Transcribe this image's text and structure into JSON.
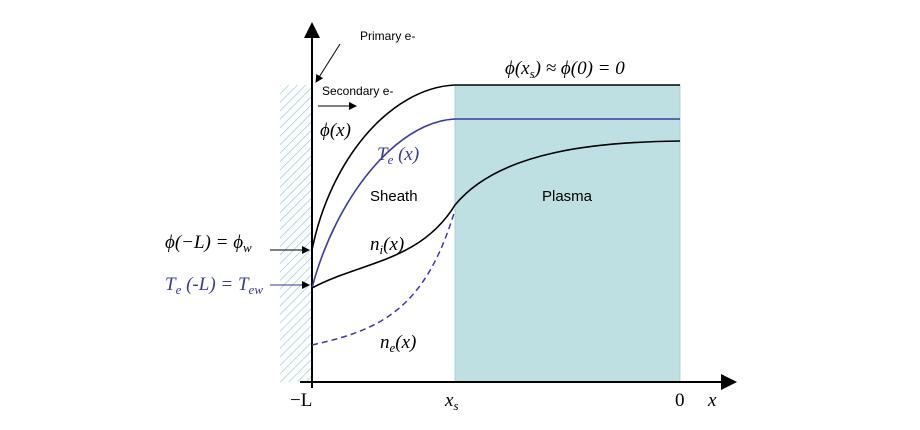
{
  "labels": {
    "primary": "Primary e-",
    "secondary": "Secondary e-",
    "phi_boundary": [
      "ϕ(x",
      "s",
      ") ≈ ϕ(0) = 0"
    ],
    "phi": "ϕ(x)",
    "te": [
      "T",
      "e",
      " (x)"
    ],
    "sheath": "Sheath",
    "plasma": "Plasma",
    "phi_wall": [
      "ϕ(−L) = ϕ",
      "w"
    ],
    "ni": [
      "n",
      "i",
      "(x)"
    ],
    "te_wall": [
      "T",
      "e",
      " (-L) = T",
      "ew"
    ],
    "ne": [
      "n",
      "e",
      "(x)"
    ]
  },
  "axis": {
    "ticks": [
      "−L",
      [
        "x",
        "s"
      ],
      "0"
    ],
    "x_label": "x"
  }
}
